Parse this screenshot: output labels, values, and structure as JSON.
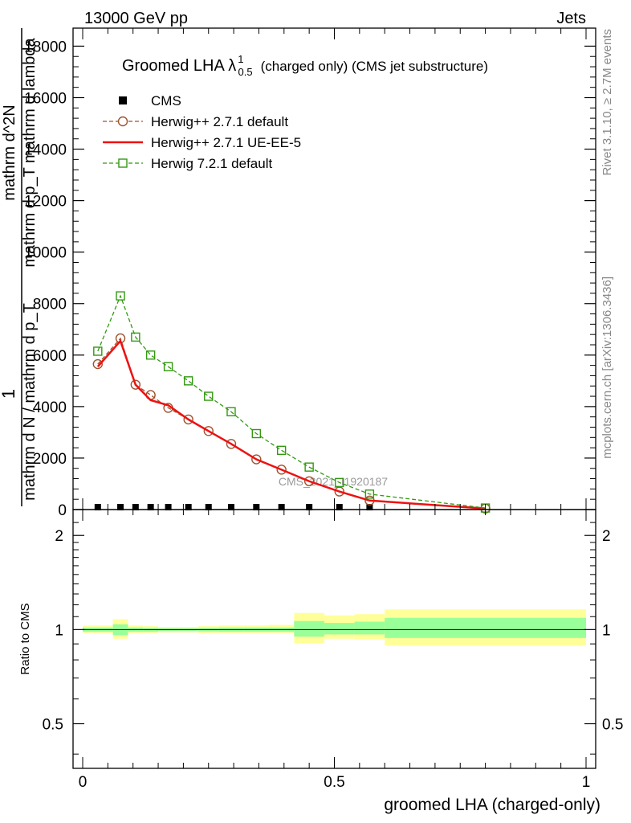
{
  "header": {
    "energy": "13000 GeV pp",
    "process": "Jets"
  },
  "side_labels": {
    "rivet": "Rivet 3.1.10, ≥ 2.7M events",
    "mcplots": "mcplots.cern.ch [arXiv:1306.3436]"
  },
  "watermark": "CMS_2021_I1920187",
  "chart_data": [
    {
      "type": "line",
      "panel": "main",
      "title": "Groomed LHA λ",
      "title_sup": "1",
      "title_sub": "0.5",
      "title_suffix": "(charged only) (CMS jet substructure)",
      "ylabel_lines": [
        "1",
        "mathrm d N / mathrm d p_T",
        "mathrm d^2N",
        "mathrm d p_T mathrm d lambda"
      ],
      "xlim": [
        0,
        1
      ],
      "ylim": [
        0,
        18700
      ],
      "y_ticks": [
        0,
        2000,
        4000,
        6000,
        8000,
        10000,
        12000,
        14000,
        16000,
        18000
      ],
      "y_tick_labels": [
        "0",
        "2000",
        "4000",
        "6000",
        "8000",
        "10000",
        "12000",
        "14000",
        "16000",
        "18000"
      ],
      "legend": {
        "position": "top-left"
      },
      "series": [
        {
          "name": "CMS",
          "style": "marker-square",
          "color": "#000000",
          "x": [
            0.03,
            0.075,
            0.105,
            0.135,
            0.17,
            0.21,
            0.25,
            0.295,
            0.345,
            0.395,
            0.45,
            0.51,
            0.57
          ],
          "y": [
            30,
            30,
            30,
            30,
            30,
            30,
            30,
            30,
            30,
            30,
            30,
            30,
            30
          ]
        },
        {
          "name": "Herwig++ 2.7.1 default",
          "style": "dashed-circle",
          "color": "#a0522d",
          "x": [
            0.03,
            0.075,
            0.105,
            0.135,
            0.17,
            0.21,
            0.25,
            0.295,
            0.345,
            0.395,
            0.45,
            0.51,
            0.57,
            0.8
          ],
          "y": [
            5650,
            6650,
            4850,
            4450,
            3950,
            3500,
            3050,
            2550,
            1950,
            1550,
            1100,
            700,
            350,
            40
          ]
        },
        {
          "name": "Herwig++ 2.7.1 UE-EE-5",
          "style": "solid",
          "color": "#ee1111",
          "x": [
            0.03,
            0.075,
            0.105,
            0.135,
            0.17,
            0.21,
            0.25,
            0.295,
            0.345,
            0.395,
            0.45,
            0.51,
            0.57,
            0.8
          ],
          "y": [
            5550,
            6550,
            4850,
            4250,
            4050,
            3500,
            3050,
            2550,
            1950,
            1550,
            1100,
            700,
            350,
            40
          ]
        },
        {
          "name": "Herwig 7.2.1 default",
          "style": "dashed-square",
          "color": "#339911",
          "x": [
            0.03,
            0.075,
            0.105,
            0.135,
            0.17,
            0.21,
            0.25,
            0.295,
            0.345,
            0.395,
            0.45,
            0.51,
            0.57,
            0.8
          ],
          "y": [
            6150,
            8300,
            6700,
            6000,
            5550,
            5000,
            4400,
            3800,
            2950,
            2300,
            1650,
            1050,
            600,
            60
          ]
        }
      ]
    },
    {
      "type": "area",
      "panel": "ratio",
      "ylabel": "Ratio to CMS",
      "xlabel": "groomed LHA (charged-only)",
      "xlim": [
        0,
        1
      ],
      "ylim": [
        0.36,
        2.42
      ],
      "log_y": true,
      "y_ticks": [
        0.5,
        1,
        2
      ],
      "y_tick_labels": [
        "0.5",
        "1",
        "2"
      ],
      "x_ticks": [
        0,
        0.5,
        1
      ],
      "x_tick_labels": [
        "0",
        "0.5",
        "1"
      ],
      "bins": [
        0,
        0.06,
        0.09,
        0.12,
        0.15,
        0.19,
        0.23,
        0.27,
        0.32,
        0.37,
        0.42,
        0.48,
        0.54,
        0.6,
        1.0
      ],
      "band_outer": [
        [
          0.975,
          1.03
        ],
        [
          0.935,
          1.08
        ],
        [
          0.975,
          1.03
        ],
        [
          0.975,
          1.025
        ],
        [
          0.98,
          1.02
        ],
        [
          0.98,
          1.02
        ],
        [
          0.975,
          1.025
        ],
        [
          0.975,
          1.03
        ],
        [
          0.975,
          1.03
        ],
        [
          0.975,
          1.035
        ],
        [
          0.905,
          1.13
        ],
        [
          0.935,
          1.11
        ],
        [
          0.93,
          1.12
        ],
        [
          0.89,
          1.16
        ]
      ],
      "band_inner": [
        [
          0.985,
          1.015
        ],
        [
          0.96,
          1.04
        ],
        [
          0.985,
          1.015
        ],
        [
          0.985,
          1.012
        ],
        [
          0.99,
          1.01
        ],
        [
          0.99,
          1.01
        ],
        [
          0.987,
          1.012
        ],
        [
          0.985,
          1.015
        ],
        [
          0.985,
          1.015
        ],
        [
          0.985,
          1.015
        ],
        [
          0.95,
          1.065
        ],
        [
          0.965,
          1.05
        ],
        [
          0.965,
          1.06
        ],
        [
          0.94,
          1.09
        ]
      ],
      "colors": {
        "outer": "#ffff99",
        "inner": "#99ff99",
        "line": "#000000"
      }
    }
  ]
}
